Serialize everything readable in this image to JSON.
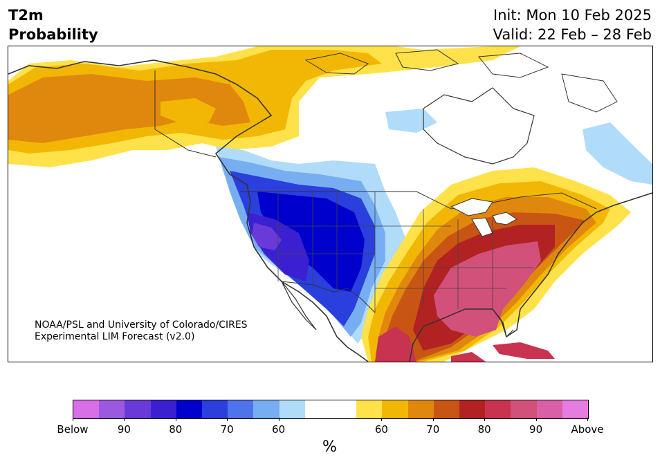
{
  "header": {
    "title_line1": "T2m",
    "title_line2": "Probability",
    "init": "Init: Mon 10 Feb 2025",
    "valid": "Valid: 22 Feb – 28 Feb"
  },
  "map": {
    "region": "North America",
    "credit_line1": "NOAA/PSL and University of Colorado/CIRES",
    "credit_line2": "Experimental LIM Forecast (v2.0)"
  },
  "colorbar": {
    "unit": "%",
    "tick_labels": [
      "Below",
      "90",
      "80",
      "70",
      "60",
      "60",
      "70",
      "80",
      "90",
      "Above"
    ],
    "segments": [
      {
        "color": "#d86fe8"
      },
      {
        "color": "#9b59e0"
      },
      {
        "color": "#6a3ad8"
      },
      {
        "color": "#3a20d0"
      },
      {
        "color": "#0000cd"
      },
      {
        "color": "#2a3fdc"
      },
      {
        "color": "#4f73ea"
      },
      {
        "color": "#77aef2"
      },
      {
        "color": "#b0dcfa"
      },
      {
        "color": "#ffffff"
      },
      {
        "color": "#ffffff"
      },
      {
        "color": "#ffe24a"
      },
      {
        "color": "#f2b705"
      },
      {
        "color": "#e0880e"
      },
      {
        "color": "#c85514"
      },
      {
        "color": "#b22222"
      },
      {
        "color": "#c8334f"
      },
      {
        "color": "#d1517a"
      },
      {
        "color": "#d95fa6"
      },
      {
        "color": "#e57ce0"
      }
    ]
  },
  "palette": {
    "cold_strong": "#0000cd",
    "cold_mid": "#2a3fdc",
    "cold_light": "#77aef2",
    "cold_faint": "#b0dcfa",
    "warm_faint": "#ffe24a",
    "warm_light": "#f2b705",
    "warm_mid": "#e0880e",
    "warm_strong": "#c85514",
    "hot": "#b22222",
    "hottest": "#d1517a",
    "land_outline": "#333333"
  }
}
